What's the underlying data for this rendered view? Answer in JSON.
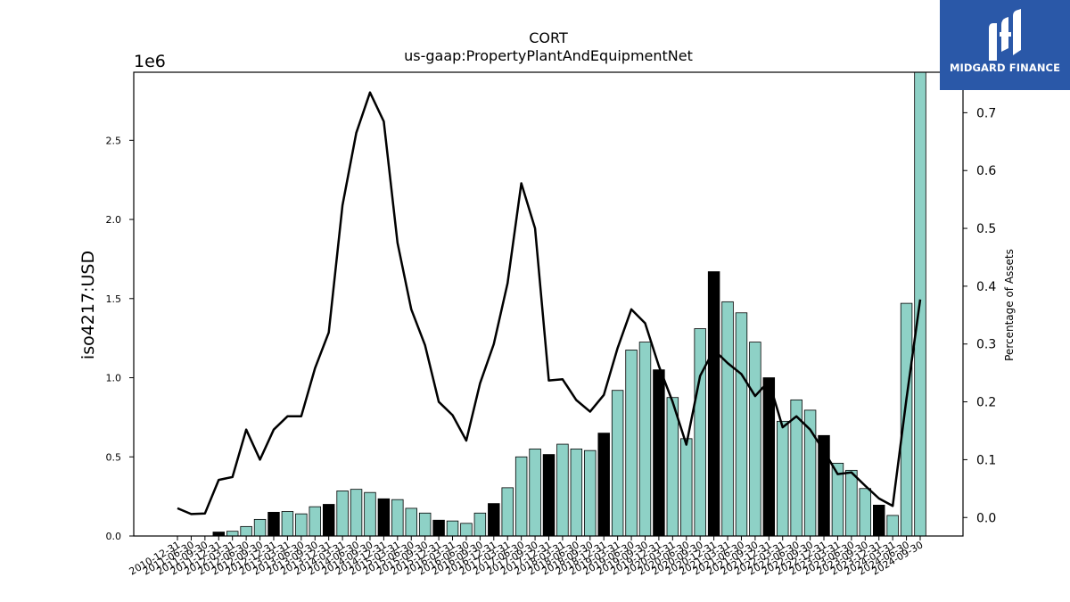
{
  "chart_data": {
    "type": "bar",
    "title": "CORT",
    "subtitle": "us-gaap:PropertyPlantAndEquipmentNet",
    "ylabel": "iso4217:USD",
    "y_offset_label": "1e6",
    "y2label": "Percentage of Assets",
    "ylim": [
      0,
      2.93
    ],
    "y2lim": [
      -0.032,
      0.77
    ],
    "yticks": [
      "0.0",
      "0.5",
      "1.0",
      "1.5",
      "2.0",
      "2.5"
    ],
    "y2ticks": [
      "0.0",
      "0.1",
      "0.2",
      "0.3",
      "0.4",
      "0.5",
      "0.6",
      "0.7"
    ],
    "grid": false,
    "x_tick_labels": [
      "2010-12-31",
      "2011-06-30",
      "2011-09-30",
      "2011-12-31",
      "2012-03-31",
      "2012-06-30",
      "2012-09-30",
      "2012-12-31",
      "2013-03-31",
      "2013-06-30",
      "2013-09-30",
      "2013-12-31",
      "2014-03-31",
      "2014-06-30",
      "2014-09-30",
      "2014-12-31",
      "2015-03-31",
      "2015-06-30",
      "2015-09-30",
      "2015-12-31",
      "2016-03-31",
      "2016-06-30",
      "2016-09-30",
      "2016-12-31",
      "2017-03-31",
      "2017-06-30",
      "2017-09-30",
      "2017-12-31",
      "2018-03-31",
      "2018-06-30",
      "2018-09-30",
      "2018-12-31",
      "2019-03-31",
      "2019-06-30",
      "2019-09-30",
      "2019-12-31",
      "2020-03-31",
      "2020-06-30",
      "2020-09-30",
      "2020-12-31",
      "2021-03-31",
      "2021-06-30",
      "2021-09-30",
      "2021-12-31",
      "2022-03-31",
      "2022-06-30",
      "2022-09-30",
      "2022-12-31",
      "2023-03-31",
      "2023-06-30",
      "2023-09-30",
      "2023-12-31",
      "2024-03-31",
      "2024-06-30",
      "2024-09-30"
    ],
    "bar_values": [
      0,
      0,
      0,
      0.025,
      0.03,
      0.06,
      0.105,
      0.15,
      0.155,
      0.14,
      0.185,
      0.2,
      0.285,
      0.295,
      0.275,
      0.235,
      0.23,
      0.175,
      0.145,
      0.1,
      0.095,
      0.08,
      0.145,
      0.205,
      0.305,
      0.5,
      0.55,
      0.515,
      0.58,
      0.55,
      0.54,
      0.65,
      0.92,
      1.175,
      1.225,
      1.05,
      0.875,
      0.615,
      1.31,
      1.67,
      1.48,
      1.41,
      1.225,
      1.0,
      0.725,
      0.86,
      0.795,
      0.635,
      0.46,
      0.415,
      0.3,
      0.195,
      0.13,
      1.47,
      2.94
    ],
    "bar_highlight": [
      false,
      false,
      false,
      true,
      false,
      false,
      false,
      true,
      false,
      false,
      false,
      true,
      false,
      false,
      false,
      true,
      false,
      false,
      false,
      true,
      false,
      false,
      false,
      true,
      false,
      false,
      false,
      true,
      false,
      false,
      false,
      true,
      false,
      false,
      false,
      true,
      false,
      false,
      false,
      true,
      false,
      false,
      false,
      true,
      false,
      false,
      false,
      true,
      false,
      false,
      false,
      true,
      false,
      false,
      false
    ],
    "line_name": "Percentage of Assets",
    "line_values": [
      0.016,
      0.006,
      0.007,
      0.065,
      0.07,
      0.152,
      0.1,
      0.152,
      0.175,
      0.175,
      0.258,
      0.32,
      0.54,
      0.665,
      0.735,
      0.685,
      0.475,
      0.36,
      0.298,
      0.2,
      0.177,
      0.133,
      0.232,
      0.3,
      0.405,
      0.578,
      0.5,
      0.237,
      0.239,
      0.203,
      0.183,
      0.212,
      0.293,
      0.36,
      0.336,
      0.262,
      0.2,
      0.126,
      0.245,
      0.29,
      0.267,
      0.248,
      0.21,
      0.236,
      0.156,
      0.175,
      0.152,
      0.115,
      0.075,
      0.078,
      0.055,
      0.033,
      0.02,
      0.205,
      0.377
    ],
    "colors": {
      "bar": "#8ed1c6",
      "bar_highlight": "#000000",
      "bar_edge": "#000000",
      "line": "#000000",
      "logo_bg": "#2a58a8"
    }
  },
  "logo": {
    "text": "MIDGARD FINANCE",
    "icon": "midgard-logo-icon"
  }
}
